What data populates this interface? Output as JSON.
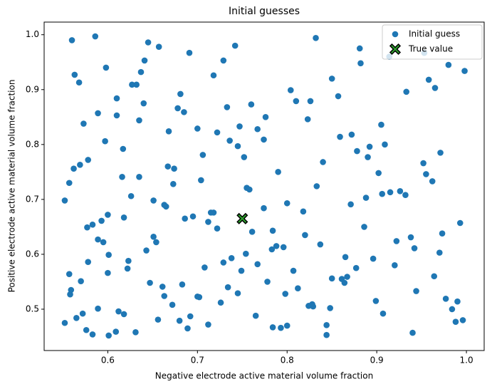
{
  "chart_data": {
    "type": "scatter",
    "title": "Initial guesses",
    "xlabel": "Negative electrode active material volume fraction",
    "ylabel": "Positive electrode active material volume fraction",
    "xlim": [
      0.529,
      1.0198
    ],
    "ylim": [
      0.4247,
      1.023
    ],
    "xticks": [
      0.6,
      0.7,
      0.8,
      0.9,
      {
        "value": 1,
        "label": "1.0"
      }
    ],
    "yticks": [
      0.5,
      0.6,
      0.7,
      0.8,
      0.9,
      {
        "value": 1,
        "label": "1.0"
      }
    ],
    "legend": "upper right",
    "series": [
      {
        "name": "Initial guess",
        "color": "#1f77b4",
        "marker": "circle",
        "x": [
          0.56,
          0.586,
          0.563,
          0.568,
          0.573,
          0.578,
          0.562,
          0.569,
          0.557,
          0.552,
          0.577,
          0.583,
          0.589,
          0.595,
          0.6,
          0.593,
          0.601,
          0.578,
          0.57,
          0.557,
          0.559,
          0.558,
          0.572,
          0.565,
          0.552,
          0.576,
          0.583,
          0.589,
          0.601,
          0.609,
          0.612,
          0.618,
          0.6,
          0.623,
          0.622,
          0.618,
          0.626,
          0.616,
          0.635,
          0.617,
          0.597,
          0.589,
          0.61,
          0.61,
          0.598,
          0.627,
          0.632,
          0.637,
          0.641,
          0.645,
          0.657,
          0.64,
          0.635,
          0.668,
          0.678,
          0.681,
          0.685,
          0.691,
          0.667,
          0.674,
          0.673,
          0.651,
          0.665,
          0.663,
          0.643,
          0.651,
          0.654,
          0.686,
          0.695,
          0.647,
          0.661,
          0.663,
          0.672,
          0.683,
          0.656,
          0.68,
          0.689,
          0.692,
          0.7,
          0.702,
          0.631,
          0.7,
          0.704,
          0.706,
          0.708,
          0.712,
          0.712,
          0.715,
          0.718,
          0.722,
          0.718,
          0.722,
          0.729,
          0.733,
          0.736,
          0.742,
          0.745,
          0.747,
          0.729,
          0.734,
          0.738,
          0.726,
          0.745,
          0.749,
          0.752,
          0.755,
          0.758,
          0.754,
          0.761,
          0.76,
          0.767,
          0.774,
          0.776,
          0.767,
          0.765,
          0.774,
          0.778,
          0.783,
          0.784,
          0.788,
          0.79,
          0.796,
          0.798,
          0.8,
          0.804,
          0.81,
          0.818,
          0.823,
          0.826,
          0.807,
          0.812,
          0.82,
          0.824,
          0.828,
          0.829,
          0.784,
          0.793,
          0.8,
          0.832,
          0.833,
          0.84,
          0.837,
          0.844,
          0.844,
          0.848,
          0.85,
          0.857,
          0.859,
          0.85,
          0.861,
          0.864,
          0.865,
          0.867,
          0.871,
          0.872,
          0.878,
          0.877,
          0.881,
          0.882,
          0.886,
          0.888,
          0.89,
          0.892,
          0.896,
          0.899,
          0.902,
          0.905,
          0.906,
          0.907,
          0.909,
          0.914,
          0.915,
          0.92,
          0.922,
          0.926,
          0.932,
          0.933,
          0.938,
          0.94,
          0.942,
          0.944,
          0.952,
          0.953,
          0.955,
          0.958,
          0.962,
          0.964,
          0.965,
          0.97,
          0.971,
          0.973,
          0.977,
          0.98,
          0.984,
          0.988,
          0.99,
          0.993,
          0.996,
          0.998
        ],
        "y": [
          0.99,
          0.997,
          0.927,
          0.913,
          0.838,
          0.772,
          0.756,
          0.763,
          0.73,
          0.698,
          0.649,
          0.654,
          0.627,
          0.622,
          0.672,
          0.661,
          0.599,
          0.586,
          0.551,
          0.564,
          0.535,
          0.527,
          0.492,
          0.484,
          0.475,
          0.462,
          0.454,
          0.501,
          0.452,
          0.459,
          0.496,
          0.491,
          0.566,
          0.588,
          0.574,
          0.667,
          0.706,
          0.741,
          0.741,
          0.792,
          0.806,
          0.857,
          0.853,
          0.884,
          0.94,
          0.909,
          0.909,
          0.932,
          0.953,
          0.986,
          0.978,
          0.875,
          0.844,
          0.824,
          0.866,
          0.892,
          0.859,
          0.967,
          0.76,
          0.756,
          0.728,
          0.698,
          0.687,
          0.69,
          0.607,
          0.632,
          0.622,
          0.665,
          0.669,
          0.548,
          0.541,
          0.524,
          0.508,
          0.545,
          0.481,
          0.479,
          0.465,
          0.487,
          0.523,
          0.522,
          0.458,
          0.829,
          0.735,
          0.781,
          0.576,
          0.472,
          0.659,
          0.676,
          0.676,
          0.647,
          0.926,
          0.822,
          0.953,
          0.868,
          0.807,
          0.98,
          0.797,
          0.833,
          0.585,
          0.54,
          0.593,
          0.512,
          0.529,
          0.57,
          0.777,
          0.721,
          0.718,
          0.601,
          0.641,
          0.873,
          0.828,
          0.809,
          0.85,
          0.582,
          0.488,
          0.684,
          0.55,
          0.609,
          0.643,
          0.615,
          0.75,
          0.613,
          0.528,
          0.693,
          0.899,
          0.879,
          0.678,
          0.846,
          0.879,
          0.57,
          0.538,
          0.635,
          0.506,
          0.509,
          0.505,
          0.467,
          0.466,
          0.47,
          0.994,
          0.724,
          0.768,
          0.618,
          0.471,
          0.453,
          0.502,
          0.92,
          0.888,
          0.814,
          0.556,
          0.555,
          0.548,
          0.595,
          0.559,
          0.691,
          0.818,
          0.788,
          0.575,
          0.975,
          0.948,
          0.65,
          0.703,
          0.777,
          0.796,
          0.592,
          0.515,
          0.748,
          0.836,
          0.71,
          0.492,
          0.8,
          0.96,
          0.713,
          0.58,
          0.624,
          0.715,
          0.708,
          0.896,
          0.631,
          0.457,
          0.611,
          0.533,
          0.766,
          0.967,
          0.746,
          0.918,
          0.733,
          0.56,
          0.903,
          0.603,
          0.785,
          0.638,
          0.519,
          0.945,
          0.5,
          0.477,
          0.514,
          0.657,
          0.48,
          0.934
        ]
      },
      {
        "name": "True value",
        "color": "#2ca02c",
        "marker": "X",
        "x": [
          0.75
        ],
        "y": [
          0.665
        ]
      }
    ]
  }
}
